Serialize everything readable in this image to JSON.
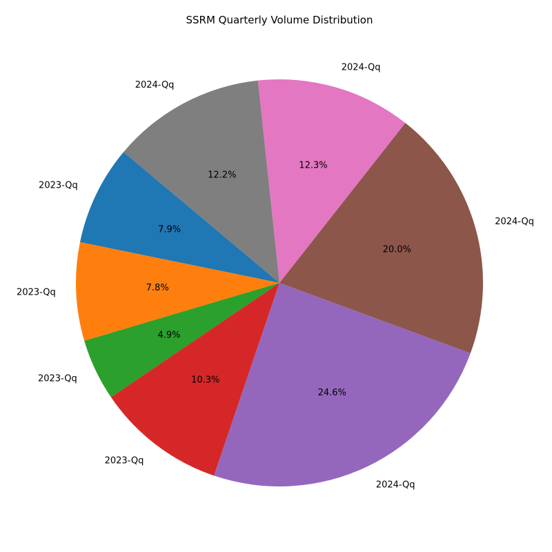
{
  "chart_data": {
    "type": "pie",
    "title": "SSRM Quarterly Volume Distribution",
    "start_angle_deg": 140,
    "direction": "counterclockwise",
    "legend": "none",
    "slices": [
      {
        "label": "2023-Qq",
        "pct_text": "7.9%",
        "value": 7.9,
        "color": "#1f77b4"
      },
      {
        "label": "2023-Qq",
        "pct_text": "7.8%",
        "value": 7.8,
        "color": "#ff7f0e"
      },
      {
        "label": "2023-Qq",
        "pct_text": "4.9%",
        "value": 4.9,
        "color": "#2ca02c"
      },
      {
        "label": "2023-Qq",
        "pct_text": "10.3%",
        "value": 10.3,
        "color": "#d62728"
      },
      {
        "label": "2024-Qq",
        "pct_text": "24.6%",
        "value": 24.6,
        "color": "#9467bd"
      },
      {
        "label": "2024-Qq",
        "pct_text": "20.0%",
        "value": 20.0,
        "color": "#8c564b"
      },
      {
        "label": "2024-Qq",
        "pct_text": "12.3%",
        "value": 12.3,
        "color": "#e377c2"
      },
      {
        "label": "2024-Qq",
        "pct_text": "12.2%",
        "value": 12.2,
        "color": "#7f7f7f"
      }
    ]
  }
}
